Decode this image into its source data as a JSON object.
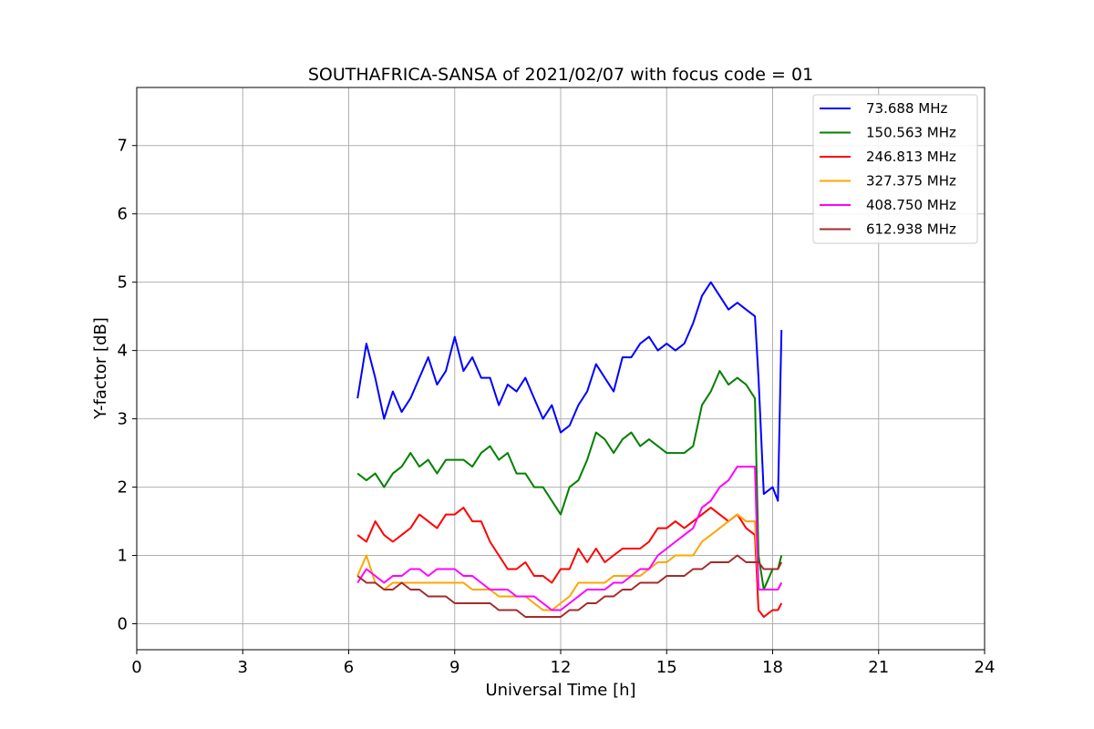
{
  "chart_data": {
    "type": "line",
    "title": "SOUTHAFRICA-SANSA of 2021/02/07 with focus code = 01",
    "xlabel": "Universal Time [h]",
    "ylabel": "Y-factor [dB]",
    "xlim": [
      0,
      24
    ],
    "ylim": [
      -0.38,
      7.85
    ],
    "xticks": [
      0,
      3,
      6,
      9,
      12,
      15,
      18,
      21,
      24
    ],
    "xtick_labels": [
      "0",
      "3",
      "6",
      "9",
      "12",
      "15",
      "18",
      "21",
      "24"
    ],
    "yticks": [
      0,
      1,
      2,
      3,
      4,
      5,
      6,
      7
    ],
    "ytick_labels": [
      "0",
      "1",
      "2",
      "3",
      "4",
      "5",
      "6",
      "7"
    ],
    "grid": true,
    "legend_position": "top-right",
    "series": [
      {
        "name": "  73.688 MHz",
        "color": "#0000ff",
        "x": [
          6.25,
          6.5,
          6.75,
          7.0,
          7.25,
          7.5,
          7.75,
          8.0,
          8.25,
          8.5,
          8.75,
          9.0,
          9.25,
          9.5,
          9.75,
          10.0,
          10.25,
          10.5,
          10.75,
          11.0,
          11.25,
          11.5,
          11.75,
          12.0,
          12.25,
          12.5,
          12.75,
          13.0,
          13.25,
          13.5,
          13.75,
          14.0,
          14.25,
          14.5,
          14.75,
          15.0,
          15.25,
          15.5,
          15.75,
          16.0,
          16.25,
          16.5,
          16.75,
          17.0,
          17.25,
          17.5,
          17.6,
          17.75,
          18.0,
          18.15,
          18.25
        ],
        "y": [
          3.3,
          4.1,
          3.6,
          3.0,
          3.4,
          3.1,
          3.3,
          3.6,
          3.9,
          3.5,
          3.7,
          4.2,
          3.7,
          3.9,
          3.6,
          3.6,
          3.2,
          3.5,
          3.4,
          3.6,
          3.3,
          3.0,
          3.2,
          2.8,
          2.9,
          3.2,
          3.4,
          3.8,
          3.6,
          3.4,
          3.9,
          3.9,
          4.1,
          4.2,
          4.0,
          4.1,
          4.0,
          4.1,
          4.4,
          4.8,
          5.0,
          4.8,
          4.6,
          4.7,
          4.6,
          4.5,
          3.6,
          1.9,
          2.0,
          1.8,
          4.3
        ]
      },
      {
        "name": "150.563 MHz",
        "color": "#008000",
        "x": [
          6.25,
          6.5,
          6.75,
          7.0,
          7.25,
          7.5,
          7.75,
          8.0,
          8.25,
          8.5,
          8.75,
          9.0,
          9.25,
          9.5,
          9.75,
          10.0,
          10.25,
          10.5,
          10.75,
          11.0,
          11.25,
          11.5,
          11.75,
          12.0,
          12.25,
          12.5,
          12.75,
          13.0,
          13.25,
          13.5,
          13.75,
          14.0,
          14.25,
          14.5,
          14.75,
          15.0,
          15.25,
          15.5,
          15.75,
          16.0,
          16.25,
          16.5,
          16.75,
          17.0,
          17.25,
          17.5,
          17.6,
          17.75,
          18.0,
          18.15,
          18.25
        ],
        "y": [
          2.2,
          2.1,
          2.2,
          2.0,
          2.2,
          2.3,
          2.5,
          2.3,
          2.4,
          2.2,
          2.4,
          2.4,
          2.4,
          2.3,
          2.5,
          2.6,
          2.4,
          2.5,
          2.2,
          2.2,
          2.0,
          2.0,
          1.8,
          1.6,
          2.0,
          2.1,
          2.4,
          2.8,
          2.7,
          2.5,
          2.7,
          2.8,
          2.6,
          2.7,
          2.6,
          2.5,
          2.5,
          2.5,
          2.6,
          3.2,
          3.4,
          3.7,
          3.5,
          3.6,
          3.5,
          3.3,
          1.0,
          0.5,
          0.8,
          0.8,
          1.0
        ]
      },
      {
        "name": "246.813 MHz",
        "color": "#ff0000",
        "x": [
          6.25,
          6.5,
          6.75,
          7.0,
          7.25,
          7.5,
          7.75,
          8.0,
          8.25,
          8.5,
          8.75,
          9.0,
          9.25,
          9.5,
          9.75,
          10.0,
          10.25,
          10.5,
          10.75,
          11.0,
          11.25,
          11.5,
          11.75,
          12.0,
          12.25,
          12.5,
          12.75,
          13.0,
          13.25,
          13.5,
          13.75,
          14.0,
          14.25,
          14.5,
          14.75,
          15.0,
          15.25,
          15.5,
          15.75,
          16.0,
          16.25,
          16.5,
          16.75,
          17.0,
          17.25,
          17.5,
          17.6,
          17.75,
          18.0,
          18.15,
          18.25
        ],
        "y": [
          1.3,
          1.2,
          1.5,
          1.3,
          1.2,
          1.3,
          1.4,
          1.6,
          1.5,
          1.4,
          1.6,
          1.6,
          1.7,
          1.5,
          1.5,
          1.2,
          1.0,
          0.8,
          0.8,
          0.9,
          0.7,
          0.7,
          0.6,
          0.8,
          0.8,
          1.1,
          0.9,
          1.1,
          0.9,
          1.0,
          1.1,
          1.1,
          1.1,
          1.2,
          1.4,
          1.4,
          1.5,
          1.4,
          1.5,
          1.6,
          1.7,
          1.6,
          1.5,
          1.6,
          1.4,
          1.3,
          0.2,
          0.1,
          0.2,
          0.2,
          0.3
        ]
      },
      {
        "name": "327.375 MHz",
        "color": "#ffa500",
        "x": [
          6.25,
          6.5,
          6.75,
          7.0,
          7.25,
          7.5,
          7.75,
          8.0,
          8.25,
          8.5,
          8.75,
          9.0,
          9.25,
          9.5,
          9.75,
          10.0,
          10.25,
          10.5,
          10.75,
          11.0,
          11.25,
          11.5,
          11.75,
          12.0,
          12.25,
          12.5,
          12.75,
          13.0,
          13.25,
          13.5,
          13.75,
          14.0,
          14.25,
          14.5,
          14.75,
          15.0,
          15.25,
          15.5,
          15.75,
          16.0,
          16.25,
          16.5,
          16.75,
          17.0,
          17.25,
          17.5,
          17.6,
          17.75,
          18.0,
          18.15,
          18.25
        ],
        "y": [
          0.7,
          1.0,
          0.6,
          0.5,
          0.6,
          0.6,
          0.6,
          0.6,
          0.6,
          0.6,
          0.6,
          0.6,
          0.6,
          0.5,
          0.5,
          0.5,
          0.4,
          0.4,
          0.4,
          0.4,
          0.3,
          0.2,
          0.2,
          0.3,
          0.4,
          0.6,
          0.6,
          0.6,
          0.6,
          0.7,
          0.7,
          0.7,
          0.7,
          0.8,
          0.9,
          0.9,
          1.0,
          1.0,
          1.0,
          1.2,
          1.3,
          1.4,
          1.5,
          1.6,
          1.5,
          1.5,
          0.5,
          0.5,
          0.5,
          0.5,
          0.6
        ]
      },
      {
        "name": "408.750 MHz",
        "color": "#ff00ff",
        "x": [
          6.25,
          6.5,
          6.75,
          7.0,
          7.25,
          7.5,
          7.75,
          8.0,
          8.25,
          8.5,
          8.75,
          9.0,
          9.25,
          9.5,
          9.75,
          10.0,
          10.25,
          10.5,
          10.75,
          11.0,
          11.25,
          11.5,
          11.75,
          12.0,
          12.25,
          12.5,
          12.75,
          13.0,
          13.25,
          13.5,
          13.75,
          14.0,
          14.25,
          14.5,
          14.75,
          15.0,
          15.25,
          15.5,
          15.75,
          16.0,
          16.25,
          16.5,
          16.75,
          17.0,
          17.25,
          17.5,
          17.6,
          17.75,
          18.0,
          18.15,
          18.25
        ],
        "y": [
          0.6,
          0.8,
          0.7,
          0.6,
          0.7,
          0.7,
          0.8,
          0.8,
          0.7,
          0.8,
          0.8,
          0.8,
          0.7,
          0.7,
          0.6,
          0.5,
          0.5,
          0.5,
          0.4,
          0.4,
          0.4,
          0.3,
          0.2,
          0.2,
          0.3,
          0.4,
          0.5,
          0.5,
          0.5,
          0.6,
          0.6,
          0.7,
          0.8,
          0.8,
          1.0,
          1.1,
          1.2,
          1.3,
          1.4,
          1.7,
          1.8,
          2.0,
          2.1,
          2.3,
          2.3,
          2.3,
          0.5,
          0.5,
          0.5,
          0.5,
          0.6
        ]
      },
      {
        "name": "612.938 MHz",
        "color": "#a52a2a",
        "x": [
          6.25,
          6.5,
          6.75,
          7.0,
          7.25,
          7.5,
          7.75,
          8.0,
          8.25,
          8.5,
          8.75,
          9.0,
          9.25,
          9.5,
          9.75,
          10.0,
          10.25,
          10.5,
          10.75,
          11.0,
          11.25,
          11.5,
          11.75,
          12.0,
          12.25,
          12.5,
          12.75,
          13.0,
          13.25,
          13.5,
          13.75,
          14.0,
          14.25,
          14.5,
          14.75,
          15.0,
          15.25,
          15.5,
          15.75,
          16.0,
          16.25,
          16.5,
          16.75,
          17.0,
          17.25,
          17.5,
          17.6,
          17.75,
          18.0,
          18.15,
          18.25
        ],
        "y": [
          0.7,
          0.6,
          0.6,
          0.5,
          0.5,
          0.6,
          0.5,
          0.5,
          0.4,
          0.4,
          0.4,
          0.3,
          0.3,
          0.3,
          0.3,
          0.3,
          0.2,
          0.2,
          0.2,
          0.1,
          0.1,
          0.1,
          0.1,
          0.1,
          0.2,
          0.2,
          0.3,
          0.3,
          0.4,
          0.4,
          0.5,
          0.5,
          0.6,
          0.6,
          0.6,
          0.7,
          0.7,
          0.7,
          0.8,
          0.8,
          0.9,
          0.9,
          0.9,
          1.0,
          0.9,
          0.9,
          0.9,
          0.8,
          0.8,
          0.8,
          0.9
        ]
      }
    ]
  }
}
